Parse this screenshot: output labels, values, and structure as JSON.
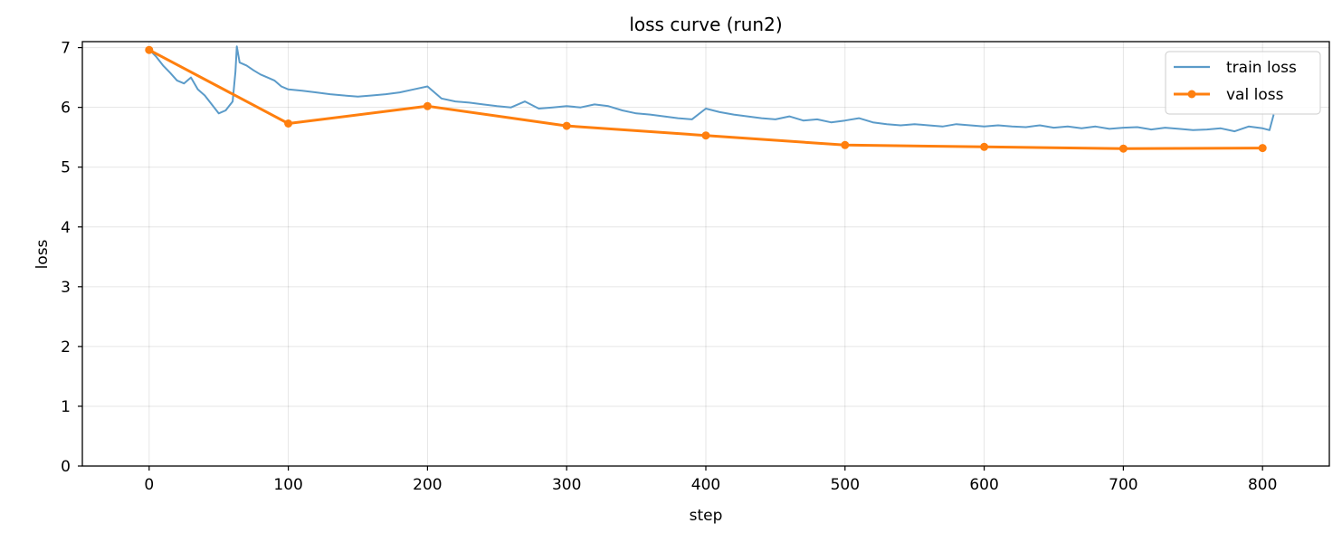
{
  "chart_data": {
    "type": "line",
    "title": "loss curve (run2)",
    "xlabel": "step",
    "ylabel": "loss",
    "xlim": [
      -48,
      848
    ],
    "ylim": [
      0,
      7.1
    ],
    "xticks": [
      "0",
      "100",
      "200",
      "300",
      "400",
      "500",
      "600",
      "700",
      "800"
    ],
    "yticks": [
      "0",
      "1",
      "2",
      "3",
      "4",
      "5",
      "6",
      "7"
    ],
    "grid": true,
    "legend_position": "upper-right",
    "series": [
      {
        "name": "train loss",
        "color": "#5b9bc9",
        "style": "line",
        "x": [
          0,
          5,
          10,
          15,
          20,
          25,
          30,
          35,
          40,
          45,
          50,
          55,
          60,
          62,
          63,
          65,
          70,
          75,
          80,
          85,
          90,
          95,
          100,
          110,
          120,
          130,
          140,
          150,
          160,
          170,
          180,
          190,
          200,
          210,
          220,
          230,
          240,
          250,
          260,
          270,
          280,
          290,
          300,
          310,
          320,
          330,
          340,
          350,
          360,
          370,
          380,
          390,
          400,
          410,
          420,
          430,
          440,
          450,
          460,
          470,
          480,
          490,
          500,
          510,
          520,
          530,
          540,
          550,
          560,
          570,
          580,
          590,
          600,
          610,
          620,
          630,
          640,
          650,
          660,
          670,
          680,
          690,
          700,
          710,
          720,
          730,
          740,
          750,
          760,
          770,
          780,
          790,
          800,
          805,
          808
        ],
        "y": [
          6.97,
          6.85,
          6.7,
          6.58,
          6.45,
          6.4,
          6.5,
          6.3,
          6.2,
          6.05,
          5.9,
          5.95,
          6.1,
          6.6,
          7.02,
          6.75,
          6.7,
          6.62,
          6.55,
          6.5,
          6.45,
          6.35,
          6.3,
          6.28,
          6.25,
          6.22,
          6.2,
          6.18,
          6.2,
          6.22,
          6.25,
          6.3,
          6.35,
          6.15,
          6.1,
          6.08,
          6.05,
          6.02,
          6.0,
          6.1,
          5.98,
          6.0,
          6.02,
          6.0,
          6.05,
          6.02,
          5.95,
          5.9,
          5.88,
          5.85,
          5.82,
          5.8,
          5.98,
          5.92,
          5.88,
          5.85,
          5.82,
          5.8,
          5.85,
          5.78,
          5.8,
          5.75,
          5.78,
          5.82,
          5.75,
          5.72,
          5.7,
          5.72,
          5.7,
          5.68,
          5.72,
          5.7,
          5.68,
          5.7,
          5.68,
          5.67,
          5.7,
          5.66,
          5.68,
          5.65,
          5.68,
          5.64,
          5.66,
          5.67,
          5.63,
          5.66,
          5.64,
          5.62,
          5.63,
          5.65,
          5.6,
          5.68,
          5.65,
          5.62,
          5.88
        ]
      },
      {
        "name": "val loss",
        "color": "#ff7f0e",
        "style": "line-marker",
        "x": [
          0,
          100,
          200,
          300,
          400,
          500,
          600,
          700,
          800
        ],
        "y": [
          6.96,
          5.73,
          6.02,
          5.69,
          5.53,
          5.37,
          5.34,
          5.31,
          5.32
        ]
      }
    ]
  }
}
